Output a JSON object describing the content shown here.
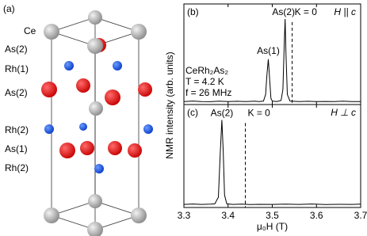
{
  "panel_a": {
    "label": "(a)",
    "atom_labels": [
      {
        "text": "Ce",
        "color": "#000000"
      },
      {
        "text": "As(2)",
        "color": "#e8171b"
      },
      {
        "text": "Rh(1)",
        "color": "#1e4fd8"
      },
      {
        "text": "As(2)",
        "color": "#e8171b"
      },
      {
        "text": "Rh(2)",
        "color": "#1e4fd8"
      },
      {
        "text": "As(1)",
        "color": "#e8171b"
      },
      {
        "text": "Rh(2)",
        "color": "#1e4fd8"
      }
    ]
  },
  "y_label": "NMR intensity (arb. units)",
  "chart_data": [
    {
      "type": "line",
      "panel_label": "(b)",
      "field_label": "H || c",
      "sample": [
        "CeRh₂As₂",
        "T = 4.2 K",
        "f = 26 MHz"
      ],
      "annotations": [
        "As(2)",
        "As(1)",
        "K = 0"
      ],
      "k0_field": 3.545,
      "color": "#000000",
      "x": [
        3.3,
        3.32,
        3.34,
        3.36,
        3.38,
        3.4,
        3.42,
        3.44,
        3.46,
        3.47,
        3.48,
        3.485,
        3.488,
        3.491,
        3.494,
        3.497,
        3.5,
        3.51,
        3.52,
        3.524,
        3.527,
        3.529,
        3.531,
        3.534,
        3.54,
        3.56,
        3.58,
        3.6,
        3.62,
        3.64,
        3.66,
        3.68,
        3.7
      ],
      "values": [
        0.03,
        0.035,
        0.03,
        0.028,
        0.034,
        0.03,
        0.032,
        0.029,
        0.033,
        0.03,
        0.035,
        0.1,
        0.3,
        0.45,
        0.25,
        0.06,
        0.035,
        0.03,
        0.04,
        0.15,
        0.6,
        0.85,
        0.5,
        0.1,
        0.035,
        0.03,
        0.032,
        0.029,
        0.031,
        0.03,
        0.033,
        0.029,
        0.03
      ],
      "xlim": [
        3.3,
        3.7
      ],
      "ylim": [
        0,
        1
      ],
      "xticks": [
        3.3,
        3.4,
        3.5,
        3.6,
        3.7
      ]
    },
    {
      "type": "line",
      "panel_label": "(c)",
      "field_label": "H ⊥ c",
      "annotations": [
        "As(2)",
        "K = 0"
      ],
      "k0_field": 3.439,
      "color": "#000000",
      "x": [
        3.3,
        3.32,
        3.34,
        3.36,
        3.37,
        3.378,
        3.382,
        3.386,
        3.389,
        3.392,
        3.397,
        3.41,
        3.43,
        3.45,
        3.47,
        3.5,
        3.53,
        3.56,
        3.59,
        3.62,
        3.65,
        3.68,
        3.7
      ],
      "values": [
        0.03,
        0.034,
        0.03,
        0.032,
        0.035,
        0.1,
        0.5,
        0.85,
        0.55,
        0.12,
        0.035,
        0.03,
        0.033,
        0.029,
        0.031,
        0.03,
        0.032,
        0.03,
        0.034,
        0.029,
        0.031,
        0.03,
        0.032
      ],
      "xlim": [
        3.3,
        3.7
      ],
      "ylim": [
        0,
        1
      ],
      "xticks": [
        3.3,
        3.4,
        3.5,
        3.6,
        3.7
      ],
      "x_label": "μ₀H (T)"
    }
  ]
}
